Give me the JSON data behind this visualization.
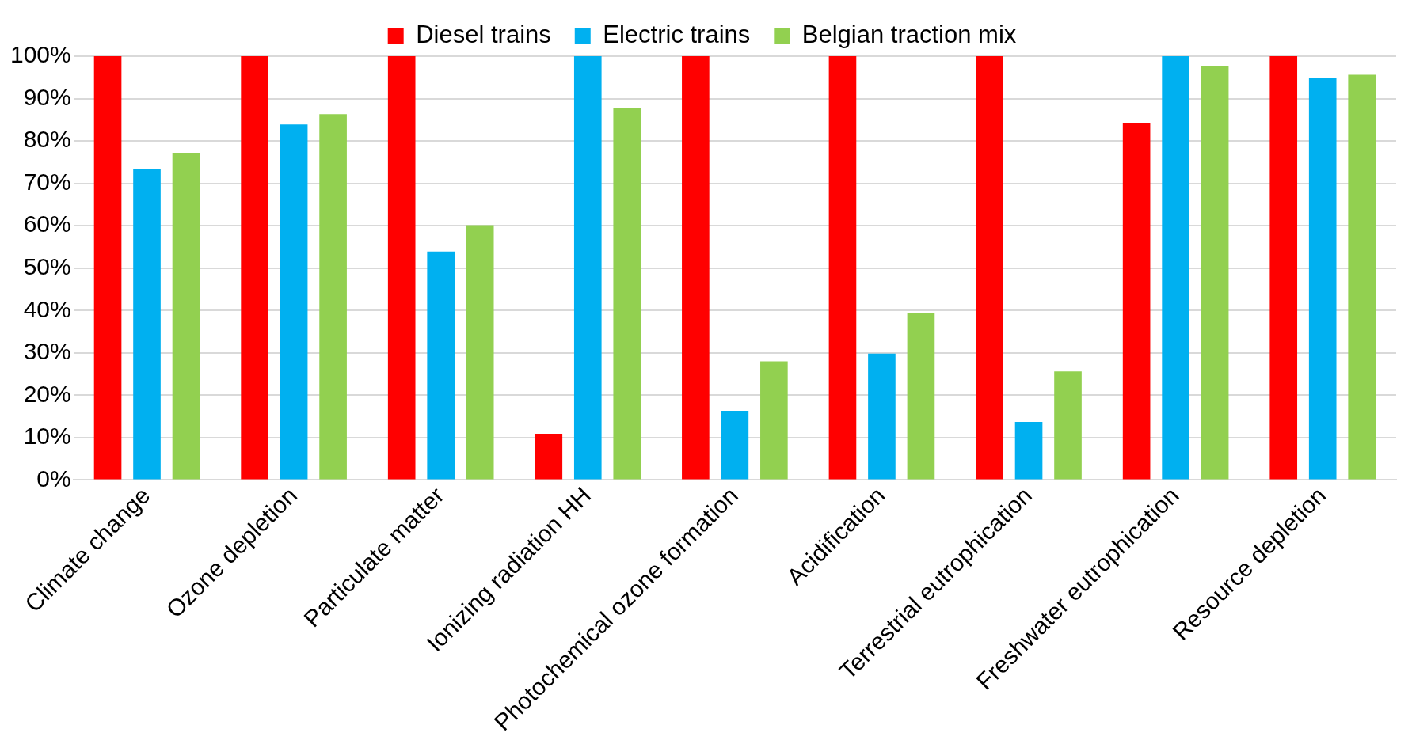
{
  "chart_data": {
    "type": "bar",
    "categories": [
      "Climate change",
      "Ozone depletion",
      "Particulate matter",
      "Ionizing radiation HH",
      "Photochemical ozone formation",
      "Acidification",
      "Terrestrial eutrophication",
      "Freshwater eutrophication",
      "Resource depletion"
    ],
    "series": [
      {
        "name": "Diesel trains",
        "color": "#ff0000",
        "values": [
          100,
          100,
          100,
          10.9,
          100,
          100,
          100,
          84.2,
          100
        ]
      },
      {
        "name": "Electric trains",
        "color": "#00b0f0",
        "values": [
          73.5,
          83.9,
          53.9,
          100,
          16.3,
          29.8,
          13.7,
          100,
          94.8
        ]
      },
      {
        "name": "Belgian traction mix",
        "color": "#92d050",
        "values": [
          77.2,
          86.3,
          60.1,
          87.8,
          28.0,
          39.4,
          25.6,
          97.7,
          95.6
        ]
      }
    ],
    "ylim": [
      0,
      100
    ],
    "yticks": [
      {
        "value": 0,
        "label": "0%"
      },
      {
        "value": 10,
        "label": "10%"
      },
      {
        "value": 20,
        "label": "20%"
      },
      {
        "value": 30,
        "label": "30%"
      },
      {
        "value": 40,
        "label": "40%"
      },
      {
        "value": 50,
        "label": "50%"
      },
      {
        "value": 60,
        "label": "60%"
      },
      {
        "value": 70,
        "label": "70%"
      },
      {
        "value": 80,
        "label": "80%"
      },
      {
        "value": 90,
        "label": "90%"
      },
      {
        "value": 100,
        "label": "100%"
      }
    ],
    "grid": "y",
    "legend": "top"
  }
}
